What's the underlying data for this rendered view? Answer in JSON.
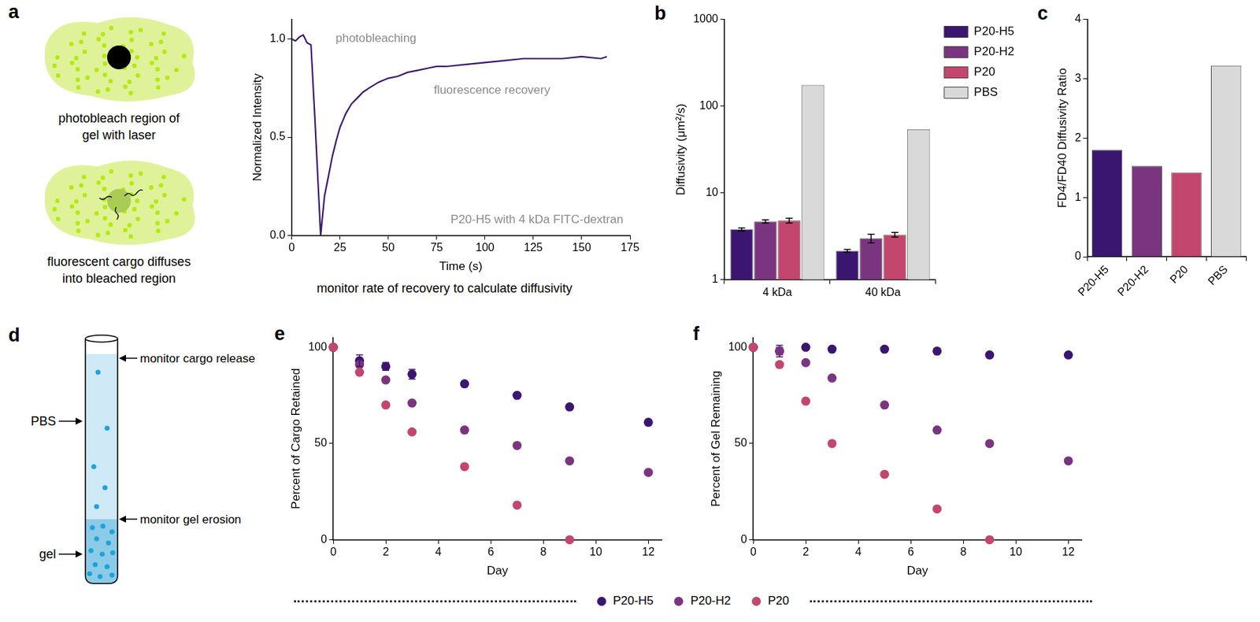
{
  "chart_data": [
    {
      "panel": "a",
      "type": "line",
      "x": [
        0,
        2,
        4,
        6,
        8,
        10,
        12,
        15,
        17,
        19,
        21,
        23,
        25,
        28,
        31,
        34,
        37,
        40,
        45,
        50,
        55,
        60,
        65,
        70,
        75,
        80,
        90,
        100,
        110,
        120,
        130,
        140,
        150,
        160,
        163
      ],
      "values": [
        1.0,
        0.99,
        1.01,
        1.02,
        0.98,
        0.97,
        0.6,
        0.0,
        0.2,
        0.3,
        0.4,
        0.48,
        0.55,
        0.62,
        0.67,
        0.7,
        0.73,
        0.75,
        0.78,
        0.8,
        0.81,
        0.83,
        0.84,
        0.85,
        0.86,
        0.86,
        0.87,
        0.88,
        0.89,
        0.9,
        0.9,
        0.9,
        0.91,
        0.9,
        0.91
      ],
      "color": "#3b1a6e",
      "xlim": [
        0,
        175
      ],
      "xticks": [
        0,
        25,
        50,
        75,
        100,
        125,
        150,
        175
      ],
      "ylim": [
        0,
        1.1
      ],
      "yticks": [
        {
          "value": 0,
          "label": "0.0"
        },
        {
          "value": 0.5,
          "label": "0.5"
        },
        {
          "value": 1,
          "label": "1.0"
        }
      ],
      "xlabel": "Time (s)",
      "ylabel": "Normalized Intensity",
      "annotations": [
        "photobleaching",
        "fluorescence recovery",
        "P20-H5 with 4 kDa FITC-dextran",
        "monitor rate of recovery to calculate diffusivity"
      ],
      "grid": false
    },
    {
      "panel": "b",
      "type": "bar",
      "log": "y",
      "categories": [
        "4 kDa",
        "40 kDa"
      ],
      "series": [
        {
          "name": "P20-H5",
          "color": "#3b1670",
          "values": [
            3.8,
            2.15
          ],
          "errors": [
            0.15,
            0.08
          ]
        },
        {
          "name": "P20-H2",
          "color": "#7b3580",
          "values": [
            4.7,
            3.0
          ],
          "errors": [
            0.2,
            0.35
          ]
        },
        {
          "name": "P20",
          "color": "#c2466e",
          "values": [
            4.8,
            3.3
          ],
          "errors": [
            0.3,
            0.2
          ]
        },
        {
          "name": "PBS",
          "color": "#d9d9d9",
          "values": [
            175,
            54
          ]
        }
      ],
      "ylim": [
        1,
        1000
      ],
      "yticks": [
        1,
        10,
        100,
        1000
      ],
      "ylabel": "Diffusivity (μm²/s)",
      "legend": "right",
      "grid": false
    },
    {
      "panel": "c",
      "type": "bar",
      "categories": [
        "P20-H5",
        "P20-H2",
        "P20",
        "PBS"
      ],
      "values": [
        1.8,
        1.53,
        1.42,
        3.22
      ],
      "colors": [
        "#3b1670",
        "#7b3580",
        "#c2466e",
        "#d9d9d9"
      ],
      "ylim": [
        0,
        4
      ],
      "yticks": [
        0,
        1,
        2,
        3,
        4
      ],
      "ylabel": "FD4/FD40 Diffusivity Ratio",
      "grid": false
    },
    {
      "panel": "e",
      "type": "scatter",
      "marker": "circle",
      "x": [
        0,
        1,
        2,
        3,
        5,
        7,
        9,
        12
      ],
      "series": [
        {
          "name": "P20-H5",
          "color": "#3b1670",
          "values": [
            100,
            93,
            90,
            86,
            81,
            75,
            69,
            61
          ],
          "errors": [
            null,
            3,
            2,
            2.5,
            null,
            null,
            null,
            null
          ]
        },
        {
          "name": "P20-H2",
          "color": "#7b3580",
          "values": [
            100,
            91,
            83,
            71,
            57,
            49,
            41,
            35
          ]
        },
        {
          "name": "P20",
          "color": "#c2466e",
          "values": [
            100,
            87,
            70,
            56,
            38,
            18,
            0,
            null
          ]
        }
      ],
      "xlim": [
        0,
        12.5
      ],
      "xticks": [
        0,
        2,
        4,
        6,
        8,
        10,
        12
      ],
      "ylim": [
        0,
        105
      ],
      "yticks": [
        0,
        50,
        100
      ],
      "xlabel": "Day",
      "ylabel": "Percent of Cargo Retained",
      "legend": "bottom",
      "grid": false
    },
    {
      "panel": "f",
      "type": "scatter",
      "marker": "circle",
      "x": [
        0,
        1,
        2,
        3,
        5,
        7,
        9,
        12
      ],
      "series": [
        {
          "name": "P20-H5",
          "color": "#3b1670",
          "values": [
            100,
            98,
            100,
            99,
            99,
            98,
            96,
            96
          ],
          "errors": [
            null,
            3,
            null,
            null,
            null,
            null,
            null,
            null
          ]
        },
        {
          "name": "P20-H2",
          "color": "#7b3580",
          "values": [
            100,
            98,
            92,
            84,
            70,
            57,
            50,
            41
          ],
          "errors": [
            null,
            2,
            null,
            null,
            null,
            null,
            null,
            null
          ]
        },
        {
          "name": "P20",
          "color": "#c2466e",
          "values": [
            100,
            91,
            72,
            50,
            34,
            16,
            0,
            null
          ]
        }
      ],
      "xlim": [
        0,
        12.5
      ],
      "xticks": [
        0,
        2,
        4,
        6,
        8,
        10,
        12
      ],
      "ylim": [
        0,
        105
      ],
      "yticks": [
        0,
        50,
        100
      ],
      "xlabel": "Day",
      "ylabel": "Percent of Gel Remaining",
      "grid": false
    }
  ],
  "diagrams": {
    "a": {
      "steps": [
        [
          "photobleach region of",
          "gel with laser"
        ],
        [
          "fluorescent cargo diffuses",
          "into bleached region"
        ]
      ]
    },
    "d": {
      "panel": "d",
      "liquid": "PBS",
      "gel": "gel",
      "top_note": "monitor cargo release",
      "interface_note": "monitor gel erosion"
    }
  }
}
